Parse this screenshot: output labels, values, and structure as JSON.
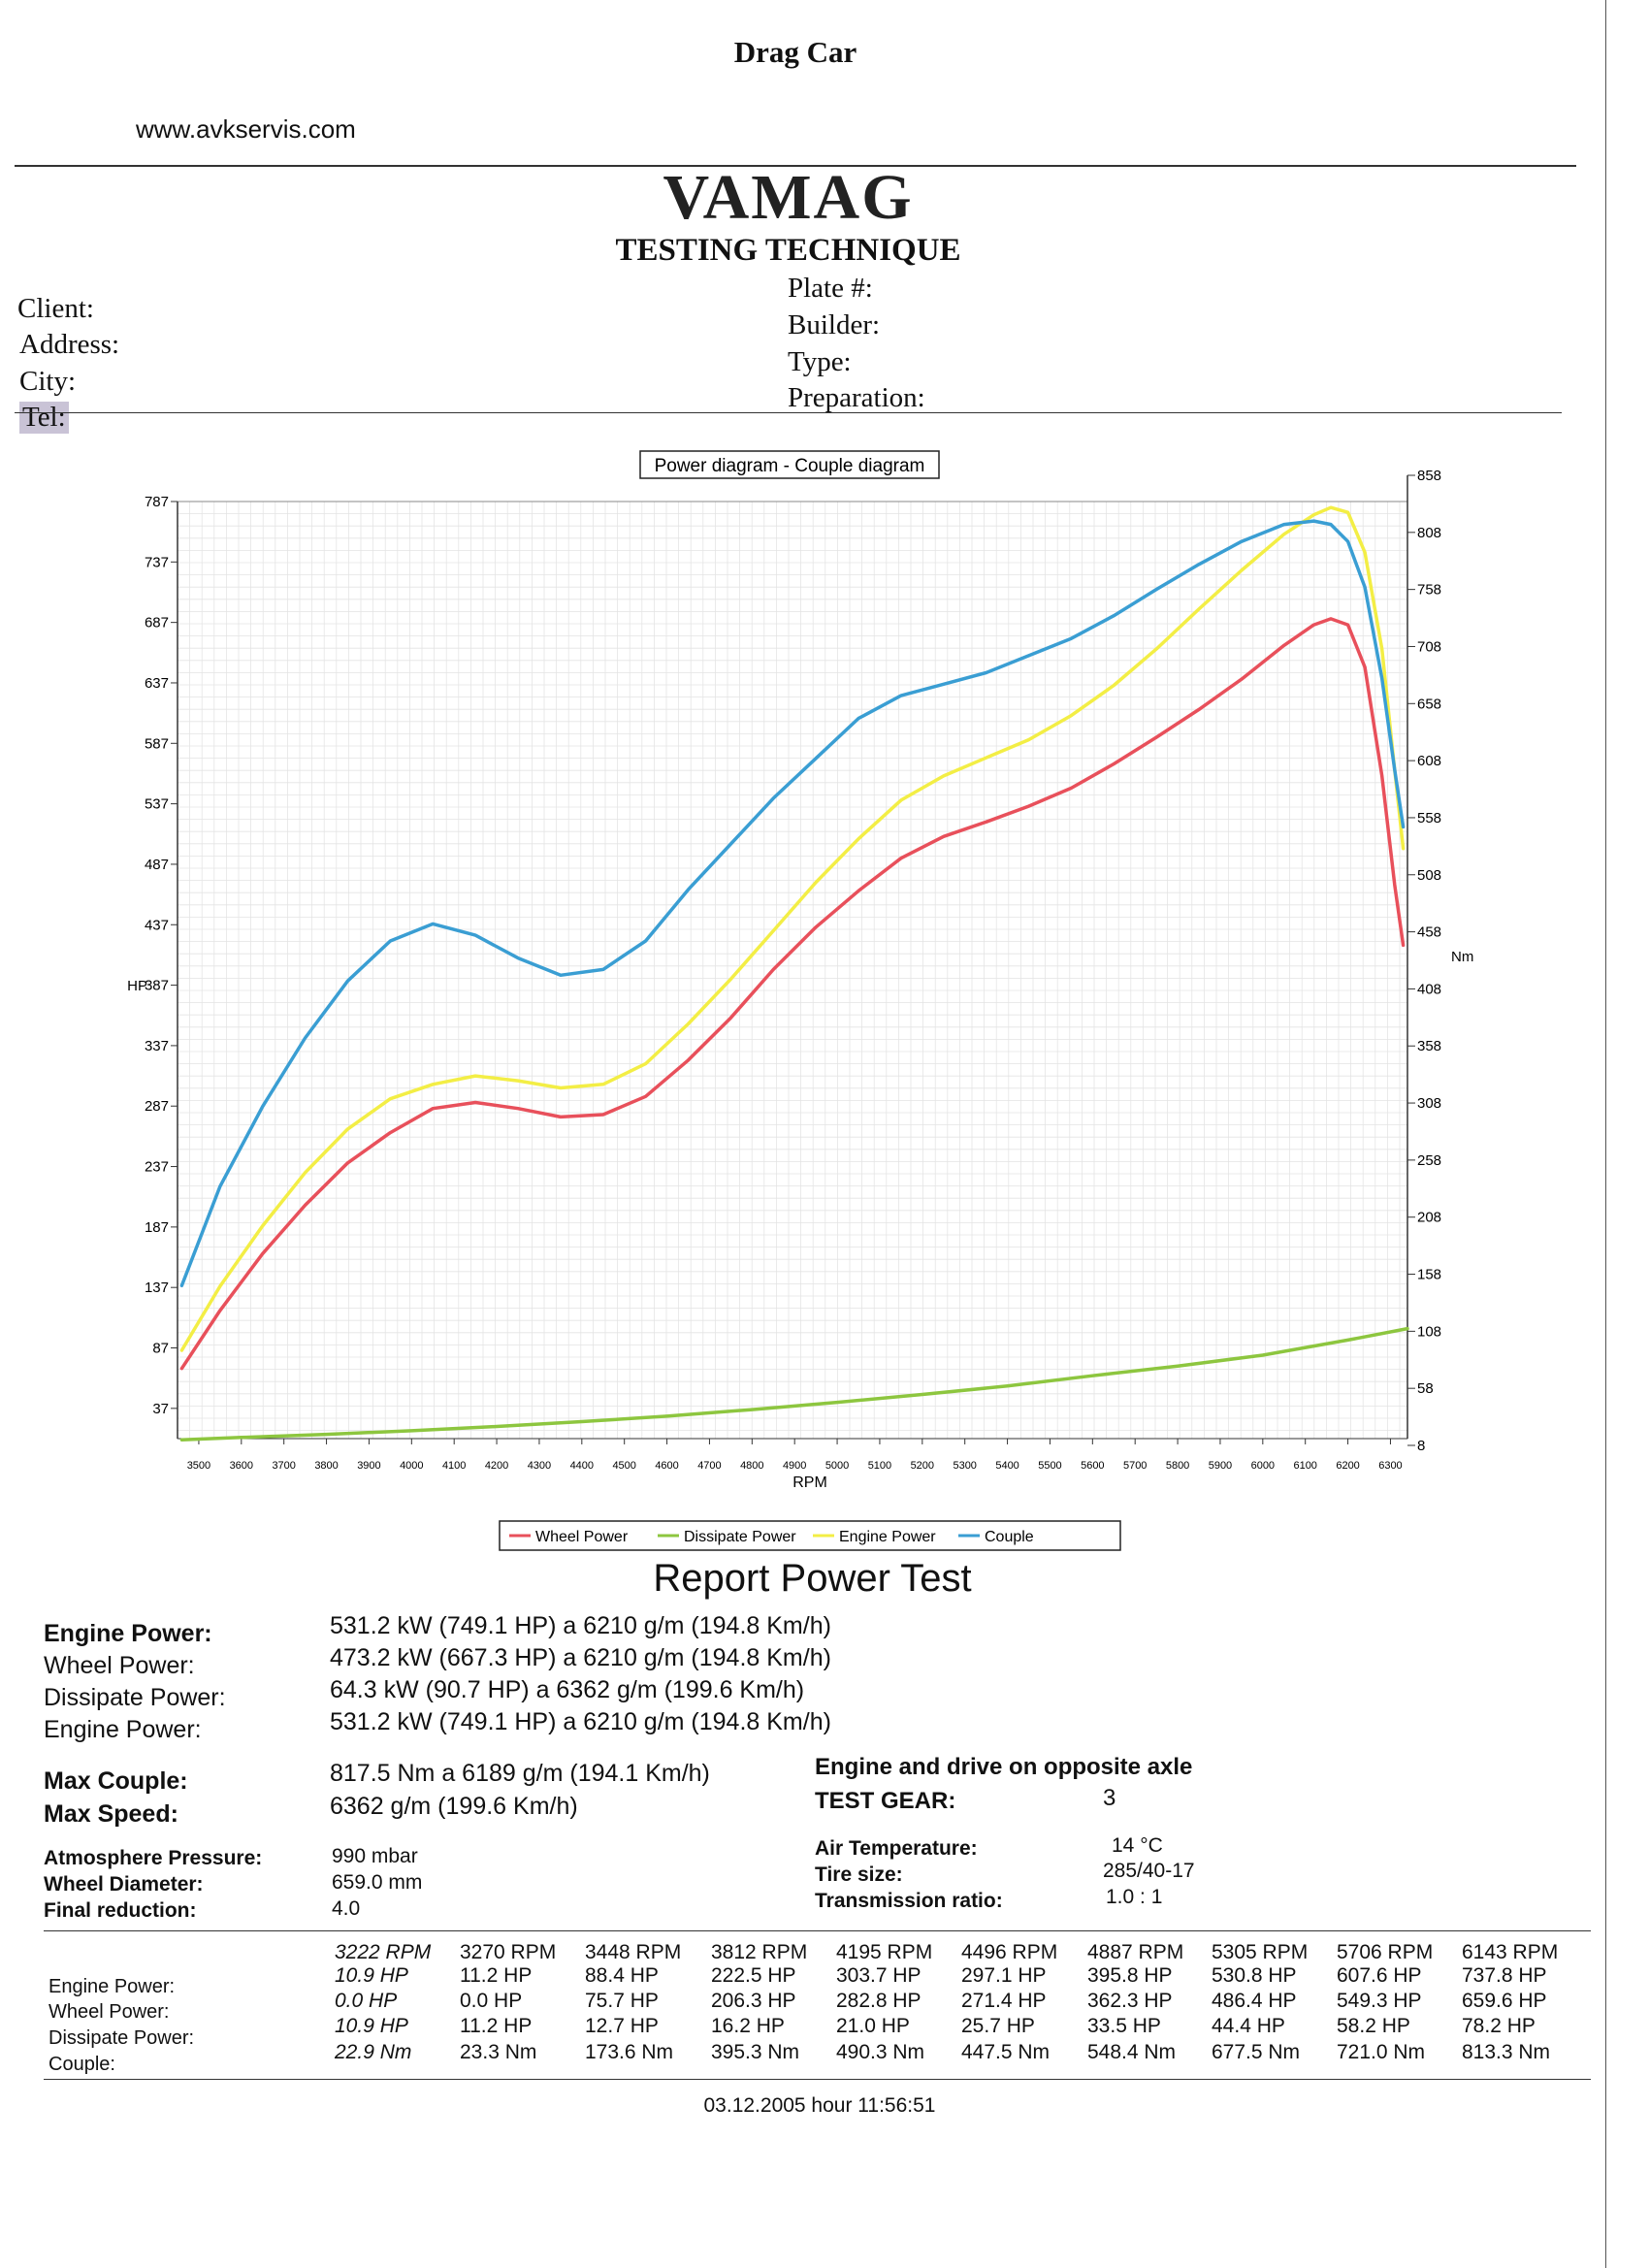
{
  "header": {
    "doc_title": "Drag Car",
    "website": "www.avkservis.com",
    "brand": "VAMAG",
    "subtitle": "TESTING TECHNIQUE"
  },
  "client_fields": {
    "left": [
      "Client:",
      "Address:",
      "City:",
      "Tel:"
    ],
    "right": [
      "Plate #:",
      "Builder:",
      "Type:",
      "Preparation:"
    ]
  },
  "chart_data": {
    "type": "line",
    "title": "Power diagram - Couple diagram",
    "xlabel": "RPM",
    "ylabel_left": "HP",
    "ylabel_right": "Nm",
    "xlim": [
      3450,
      6340
    ],
    "ylim_left": [
      12,
      787
    ],
    "ylim_right": [
      8,
      858
    ],
    "x_ticks": [
      3500,
      3600,
      3700,
      3800,
      3900,
      4000,
      4100,
      4200,
      4300,
      4400,
      4500,
      4600,
      4700,
      4800,
      4900,
      5000,
      5100,
      5200,
      5300,
      5400,
      5500,
      5600,
      5700,
      5800,
      5900,
      6000,
      6100,
      6200,
      6300
    ],
    "y_ticks_left": [
      37,
      87,
      137,
      187,
      237,
      287,
      337,
      387,
      437,
      487,
      537,
      587,
      637,
      687,
      737,
      787
    ],
    "y_ticks_right": [
      8,
      58,
      108,
      158,
      208,
      258,
      308,
      358,
      408,
      458,
      508,
      558,
      608,
      658,
      708,
      758,
      808,
      858
    ],
    "grid": true,
    "legend_position": "bottom",
    "series": [
      {
        "name": "Wheel Power",
        "color": "#e8505b",
        "axis": "left",
        "x": [
          3460,
          3550,
          3650,
          3750,
          3850,
          3950,
          4050,
          4150,
          4250,
          4350,
          4450,
          4550,
          4650,
          4750,
          4850,
          4950,
          5050,
          5150,
          5250,
          5350,
          5450,
          5550,
          5650,
          5750,
          5850,
          5950,
          6050,
          6120,
          6160,
          6200,
          6240,
          6280,
          6310,
          6330
        ],
        "y": [
          70,
          118,
          165,
          205,
          240,
          265,
          285,
          290,
          285,
          278,
          280,
          295,
          325,
          360,
          400,
          435,
          465,
          492,
          510,
          522,
          535,
          550,
          570,
          592,
          615,
          640,
          668,
          685,
          690,
          685,
          650,
          560,
          470,
          420
        ]
      },
      {
        "name": "Dissipate Power",
        "color": "#8dc63f",
        "axis": "left",
        "x": [
          3460,
          3600,
          3800,
          4000,
          4200,
          4400,
          4600,
          4800,
          5000,
          5200,
          5400,
          5600,
          5800,
          6000,
          6200,
          6340
        ],
        "y": [
          11,
          13,
          15.5,
          18.5,
          22,
          26,
          30.5,
          36,
          42,
          48.5,
          55.5,
          64,
          72,
          81,
          93.5,
          103
        ]
      },
      {
        "name": "Engine Power",
        "color": "#f3ee45",
        "axis": "left",
        "x": [
          3460,
          3550,
          3650,
          3750,
          3850,
          3950,
          4050,
          4150,
          4250,
          4350,
          4450,
          4550,
          4650,
          4750,
          4850,
          4950,
          5050,
          5150,
          5250,
          5350,
          5450,
          5550,
          5650,
          5750,
          5850,
          5950,
          6050,
          6120,
          6160,
          6200,
          6240,
          6280,
          6310,
          6330
        ],
        "y": [
          85,
          138,
          188,
          232,
          268,
          293,
          305,
          312,
          308,
          302,
          305,
          322,
          355,
          392,
          432,
          472,
          508,
          540,
          560,
          575,
          590,
          610,
          635,
          665,
          698,
          730,
          760,
          776,
          782,
          778,
          745,
          665,
          565,
          500
        ]
      },
      {
        "name": "Couple",
        "color": "#3a9ed3",
        "axis": "right",
        "x": [
          3460,
          3550,
          3650,
          3750,
          3850,
          3950,
          4050,
          4150,
          4250,
          4350,
          4450,
          4550,
          4650,
          4750,
          4850,
          4950,
          5050,
          5150,
          5250,
          5350,
          5450,
          5550,
          5650,
          5750,
          5850,
          5950,
          6050,
          6120,
          6160,
          6200,
          6240,
          6280,
          6310,
          6330
        ],
        "y": [
          148,
          235,
          305,
          365,
          415,
          450,
          465,
          455,
          435,
          420,
          425,
          450,
          495,
          535,
          575,
          610,
          645,
          665,
          675,
          685,
          700,
          715,
          735,
          758,
          780,
          800,
          815,
          818,
          815,
          800,
          760,
          680,
          600,
          550
        ]
      }
    ]
  },
  "report": {
    "title": "Report Power Test",
    "rows": [
      {
        "label": "Engine Power:",
        "value": "531.2 kW (749.1 HP) a 6210 g/m (194.8 Km/h)"
      },
      {
        "label": "Wheel Power:",
        "value": "473.2 kW (667.3 HP) a 6210 g/m (194.8 Km/h)"
      },
      {
        "label": "Dissipate Power:",
        "value": "64.3 kW (90.7 HP) a 6362 g/m (199.6 Km/h)"
      },
      {
        "label": "Engine Power:",
        "value": "531.2 kW (749.1 HP) a 6210 g/m (194.8 Km/h)"
      }
    ],
    "max_couple_label": "Max Couple:",
    "max_couple_value": "817.5 Nm a 6189 g/m (194.1 Km/h)",
    "max_speed_label": "Max Speed:",
    "max_speed_value": "6362 g/m (199.6 Km/h)",
    "drive_note": "Engine and drive on opposite axle",
    "test_gear_label": "TEST GEAR:",
    "test_gear_value": "3",
    "atmosphere_label": "Atmosphere Pressure:",
    "atmosphere_value": "990 mbar",
    "wheel_diameter_label": "Wheel Diameter:",
    "wheel_diameter_value": "659.0 mm",
    "final_reduction_label": "Final reduction:",
    "final_reduction_value": "4.0",
    "air_temp_label": "Air Temperature:",
    "air_temp_value": "14 °C",
    "tire_size_label": "Tire size:",
    "tire_size_value": "285/40-17",
    "transmission_label": "Transmission ratio:",
    "transmission_value": "1.0 : 1"
  },
  "table": {
    "row_labels": [
      "Engine Power:",
      "Wheel Power:",
      "Dissipate Power:",
      "Couple:"
    ],
    "columns": [
      {
        "rpm": "3222 RPM",
        "engine": "10.9 HP",
        "wheel": "0.0 HP",
        "dissipate": "10.9 HP",
        "couple": "22.9 Nm"
      },
      {
        "rpm": "3270 RPM",
        "engine": "11.2 HP",
        "wheel": "0.0 HP",
        "dissipate": "11.2 HP",
        "couple": "23.3 Nm"
      },
      {
        "rpm": "3448 RPM",
        "engine": "88.4 HP",
        "wheel": "75.7 HP",
        "dissipate": "12.7 HP",
        "couple": "173.6 Nm"
      },
      {
        "rpm": "3812 RPM",
        "engine": "222.5 HP",
        "wheel": "206.3 HP",
        "dissipate": "16.2 HP",
        "couple": "395.3 Nm"
      },
      {
        "rpm": "4195 RPM",
        "engine": "303.7 HP",
        "wheel": "282.8 HP",
        "dissipate": "21.0 HP",
        "couple": "490.3 Nm"
      },
      {
        "rpm": "4496 RPM",
        "engine": "297.1 HP",
        "wheel": "271.4 HP",
        "dissipate": "25.7 HP",
        "couple": "447.5 Nm"
      },
      {
        "rpm": "4887 RPM",
        "engine": "395.8 HP",
        "wheel": "362.3 HP",
        "dissipate": "33.5 HP",
        "couple": "548.4 Nm"
      },
      {
        "rpm": "5305 RPM",
        "engine": "530.8 HP",
        "wheel": "486.4 HP",
        "dissipate": "44.4 HP",
        "couple": "677.5 Nm"
      },
      {
        "rpm": "5706 RPM",
        "engine": "607.6 HP",
        "wheel": "549.3 HP",
        "dissipate": "58.2 HP",
        "couple": "721.0 Nm"
      },
      {
        "rpm": "6143 RPM",
        "engine": "737.8 HP",
        "wheel": "659.6 HP",
        "dissipate": "78.2 HP",
        "couple": "813.3 Nm"
      }
    ]
  },
  "footer": {
    "timestamp": "03.12.2005 hour 11:56:51"
  }
}
